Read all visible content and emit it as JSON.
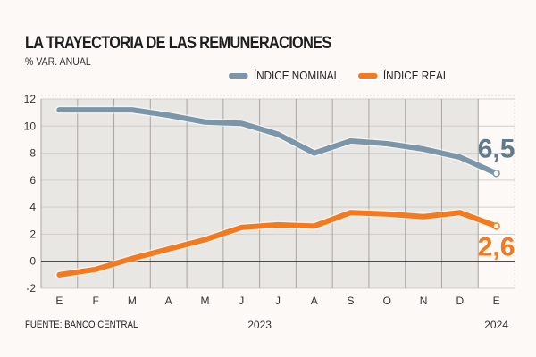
{
  "title": "LA TRAYECTORIA DE LAS REMUNERACIONES",
  "subtitle": "% VAR. ANUAL",
  "source": "FUENTE: BANCO CENTRAL",
  "chart_data": {
    "type": "line",
    "title": "LA TRAYECTORIA DE LAS REMUNERACIONES",
    "ylabel": "% VAR. ANUAL",
    "xlabel": "",
    "categories": [
      "E",
      "F",
      "M",
      "A",
      "M",
      "J",
      "J",
      "A",
      "S",
      "O",
      "N",
      "D",
      "E"
    ],
    "year_labels": [
      {
        "label": "2023",
        "at_index": 5.5
      },
      {
        "label": "2024",
        "at_index": 12
      }
    ],
    "ylim": [
      -2,
      12
    ],
    "yticks": [
      12,
      10,
      8,
      6,
      4,
      2,
      0,
      -2
    ],
    "grid": true,
    "legend_position": "top-right",
    "series": [
      {
        "name": "ÍNDICE NOMINAL",
        "color": "#7a96a8",
        "values": [
          11.2,
          11.2,
          11.2,
          10.8,
          10.3,
          10.2,
          9.4,
          8.0,
          8.9,
          8.7,
          8.3,
          7.7,
          6.5
        ],
        "end_label": "6,5"
      },
      {
        "name": "ÍNDICE REAL",
        "color": "#f47a20",
        "values": [
          -1.0,
          -0.6,
          0.2,
          0.9,
          1.6,
          2.5,
          2.7,
          2.6,
          3.6,
          3.5,
          3.3,
          3.6,
          2.6
        ],
        "end_label": "2,6"
      }
    ]
  }
}
